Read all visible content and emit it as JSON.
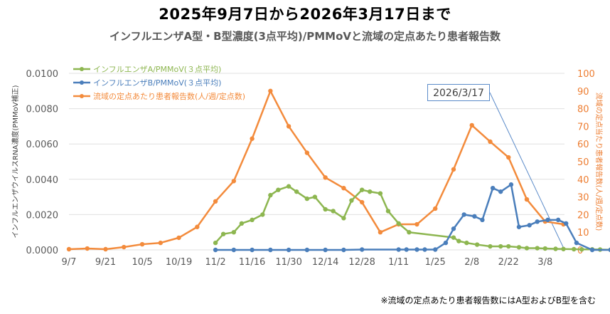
{
  "header": {
    "title": "2025年9月7日から2026年3月17日まで",
    "subtitle": "インフルエンザA型・B型濃度(3点平均)/PMMoVと流域の定点あたり患者報告数"
  },
  "callout": {
    "label": "2026/3/17"
  },
  "footnote": "※流域の定点あたり患者報告数にはA型およびB型を含む",
  "colors": {
    "influenza_a": "#8DB650",
    "influenza_b": "#4A7EBB",
    "reports": "#F38B3C",
    "grid": "#E0E0E0",
    "axis_text": "#595959"
  },
  "chart_data": {
    "type": "line",
    "title": "インフルエンザA型・B型濃度(3点平均)/PMMoVと流域の定点あたり患者報告数",
    "xlabel": "",
    "ylabel": "インフルエンザウイルスRNA濃度(PMMoV補正)",
    "ylabel_right": "流域の定点当たり患者報告数(人/週/定点数)",
    "ylim": [
      0,
      0.01
    ],
    "ylim_right": [
      0,
      100
    ],
    "yticks": [
      "0.0000",
      "0.0020",
      "0.0040",
      "0.0060",
      "0.0080",
      "0.0100"
    ],
    "yticks_right": [
      "0",
      "10",
      "20",
      "30",
      "40",
      "50",
      "60",
      "70",
      "80",
      "90",
      "100"
    ],
    "xticks": [
      "9/7",
      "9/21",
      "10/5",
      "10/19",
      "11/2",
      "11/16",
      "11/30",
      "12/14",
      "12/28",
      "1/11",
      "1/25",
      "2/8",
      "2/22",
      "3/8"
    ],
    "grid": true,
    "legend_position": "top-left",
    "annotations": [
      "2026/3/17"
    ],
    "series": [
      {
        "name": "インフルエンザA/PMMoV(３点平均)",
        "axis": "left",
        "color": "#8DB650",
        "x_days": [
          56,
          59,
          63,
          66,
          70,
          74,
          77,
          80,
          84,
          87,
          91,
          94,
          98,
          101,
          105,
          108,
          112,
          115,
          119,
          122,
          126,
          130,
          147,
          149,
          152,
          156,
          161,
          165,
          168,
          172,
          175,
          179,
          182,
          186,
          189,
          193,
          196,
          200,
          203,
          207,
          210,
          213
        ],
        "values": [
          0.0004,
          0.0009,
          0.001,
          0.0015,
          0.0017,
          0.002,
          0.0031,
          0.0034,
          0.0036,
          0.0033,
          0.0029,
          0.003,
          0.0023,
          0.0022,
          0.0018,
          0.0028,
          0.0034,
          0.0033,
          0.0032,
          0.0022,
          0.0015,
          0.001,
          0.0007,
          0.0005,
          0.0004,
          0.0003,
          0.0002,
          0.0002,
          0.0002,
          0.00015,
          0.0001,
          0.0001,
          8e-05,
          6e-05,
          5e-05,
          4e-05,
          3e-05,
          3e-05,
          2e-05,
          1e-05,
          0.0,
          0.0
        ]
      },
      {
        "name": "インフルエンザB/PMMoV(３点平均)",
        "axis": "left",
        "color": "#4A7EBB",
        "x_days": [
          56,
          63,
          70,
          77,
          84,
          91,
          98,
          105,
          112,
          126,
          129,
          133,
          136,
          140,
          144,
          147,
          151,
          155,
          158,
          162,
          165,
          169,
          172,
          176,
          179,
          183,
          187,
          190,
          194,
          200,
          207,
          211
        ],
        "values": [
          0.0,
          0.0,
          0.0,
          0.0,
          0.0,
          0.0,
          0.0,
          0.0,
          2e-05,
          2e-05,
          2e-05,
          2e-05,
          2e-05,
          2e-05,
          0.0004,
          0.0012,
          0.002,
          0.0019,
          0.0017,
          0.0035,
          0.0033,
          0.0037,
          0.0013,
          0.0014,
          0.0016,
          0.0017,
          0.0017,
          0.0015,
          0.0004,
          0.0,
          0.0,
          0.0
        ]
      },
      {
        "name": "流域の定点あたり患者報告数(人/週/定点数)",
        "axis": "right",
        "color": "#F38B3C",
        "x_days": [
          0,
          7,
          14,
          21,
          28,
          35,
          42,
          49,
          56,
          63,
          70,
          77,
          84,
          91,
          98,
          105,
          112,
          119,
          126,
          133,
          140,
          147,
          154,
          161,
          168,
          175,
          182,
          189
        ],
        "values": [
          0.4,
          0.8,
          0.4,
          1.6,
          3.2,
          4.0,
          6.9,
          13.0,
          27.5,
          39.0,
          63.0,
          90.0,
          70.0,
          55.0,
          41.0,
          35.0,
          27.0,
          10.0,
          14.5,
          14.5,
          23.4,
          45.6,
          70.6,
          61.3,
          52.4,
          28.6,
          16.1,
          14.5
        ]
      }
    ]
  }
}
